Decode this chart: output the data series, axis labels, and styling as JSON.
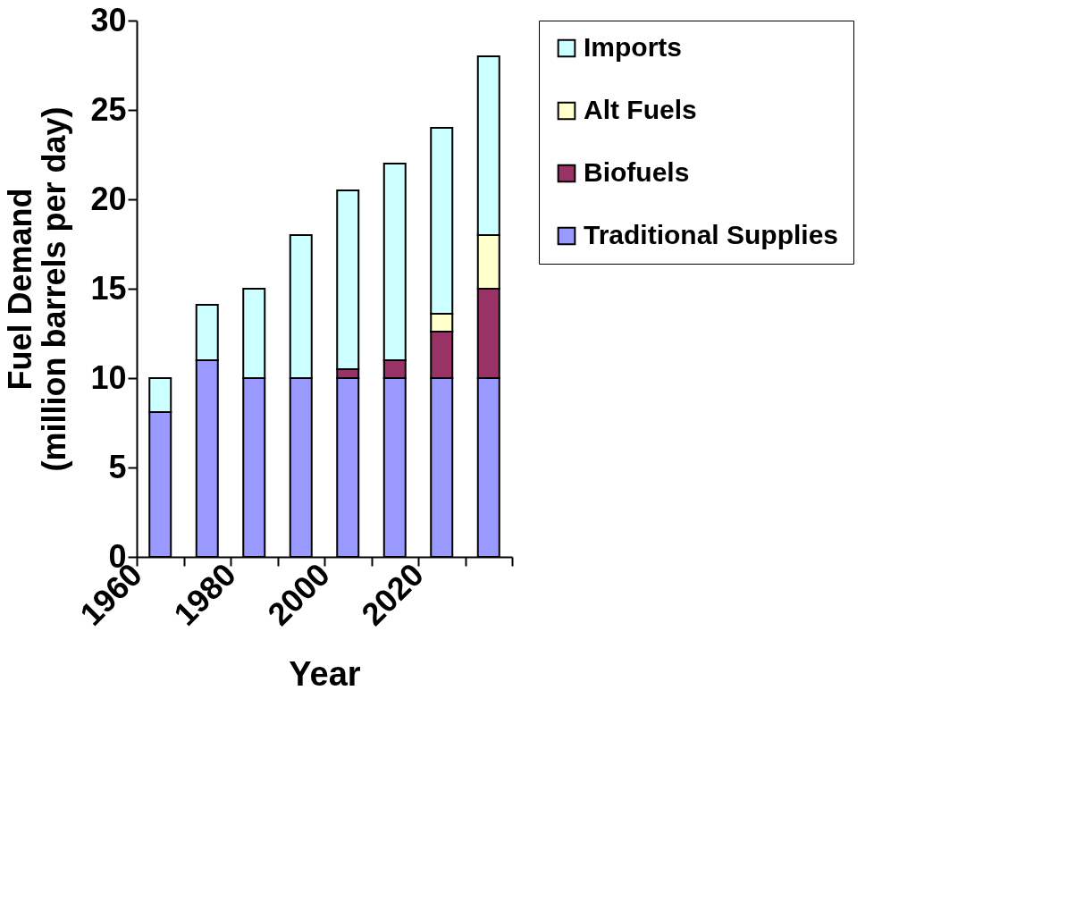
{
  "chart_data": {
    "type": "bar",
    "stacked": true,
    "xlabel": "Year",
    "ylabel": "Fuel Demand\n(million barrels per day)",
    "x": [
      1965,
      1975,
      1985,
      1995,
      2005,
      2015,
      2025,
      2035
    ],
    "xlim": [
      1960,
      2040
    ],
    "xticks": [
      1960,
      {
        "value": 1970,
        "label": null
      },
      1980,
      {
        "value": 1990,
        "label": null
      },
      2000,
      {
        "value": 2010,
        "label": null
      },
      2020,
      {
        "value": 2030,
        "label": null
      },
      {
        "value": 2040,
        "label": null
      }
    ],
    "ylim": [
      0,
      30
    ],
    "yticks": [
      0,
      5,
      10,
      15,
      20,
      25,
      30
    ],
    "series": [
      {
        "name": "Traditional Supplies",
        "color": "#9999ff",
        "values": [
          8.1,
          11,
          10,
          10,
          10,
          10,
          10,
          10
        ]
      },
      {
        "name": "Biofuels",
        "color": "#993366",
        "values": [
          null,
          null,
          null,
          null,
          0.5,
          1,
          2.6,
          5
        ]
      },
      {
        "name": "Alt Fuels",
        "color": "#ffffcc",
        "values": [
          null,
          null,
          null,
          null,
          null,
          null,
          1,
          3
        ]
      },
      {
        "name": "Imports",
        "color": "#ccffff",
        "values": [
          1.9,
          3.1,
          5,
          8,
          10,
          11,
          10.4,
          10
        ]
      }
    ],
    "legend": "right",
    "grid": false
  }
}
